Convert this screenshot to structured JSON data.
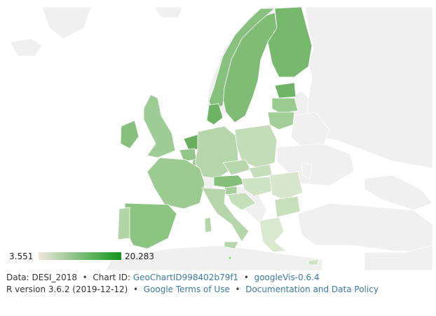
{
  "map": {
    "colors": {
      "ocean": "#ffffff",
      "no_data": "#f0f0f0",
      "border": "#ffffff",
      "scale_min": "#efe6dc",
      "scale_max": "#109618"
    },
    "legend": {
      "min": "3.551",
      "max": "20.283"
    }
  },
  "footer": {
    "line1": {
      "data_text": "Data: DESI_2018",
      "chart_id_label": "Chart ID:",
      "chart_id_link": "GeoChartID998402b79f1",
      "googlevis_link": "googleVis-0.6.4"
    },
    "line2": {
      "r_version": "R version 3.6.2 (2019-12-12)",
      "terms_link": "Google Terms of Use",
      "policy_link": "Documentation and Data Policy"
    }
  }
}
